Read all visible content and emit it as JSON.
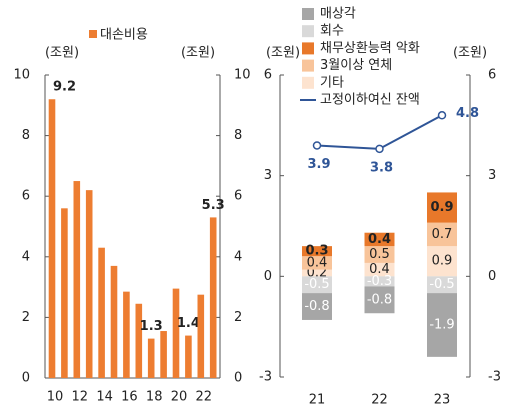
{
  "chart_data": [
    {
      "type": "bar",
      "legend": "대손비용",
      "color": "#ed7d31",
      "unit_left": "(조원)",
      "unit_right": "(조원)",
      "categories": [
        "10",
        null,
        "12",
        null,
        "14",
        null,
        "16",
        null,
        "18",
        null,
        "20",
        null,
        "22",
        null
      ],
      "values": [
        9.2,
        5.6,
        6.5,
        6.2,
        4.3,
        3.7,
        2.85,
        2.45,
        1.3,
        1.55,
        2.95,
        1.4,
        2.75,
        5.3
      ],
      "value_labels": [
        "9.2",
        null,
        null,
        null,
        null,
        null,
        null,
        null,
        "1.3",
        null,
        null,
        "1.4",
        null,
        "5.3"
      ],
      "ylim": [
        0,
        10
      ],
      "yticks": [
        0,
        2,
        4,
        6,
        8,
        10
      ]
    },
    {
      "type": "combo",
      "unit_left": "(조원)",
      "unit_right": "(조원)",
      "categories": [
        "21",
        "22",
        "23"
      ],
      "series": [
        {
          "name": "매상각",
          "color": "#a6a6a6",
          "values": [
            -0.8,
            -0.8,
            -1.9
          ]
        },
        {
          "name": "회수",
          "color": "#d9d9d9",
          "values": [
            -0.5,
            -0.3,
            -0.5
          ]
        },
        {
          "name": "채무상환능력 악화",
          "color": "#e8782a",
          "values": [
            0.3,
            0.4,
            0.9
          ]
        },
        {
          "name": "3월이상 연체",
          "color": "#f8c49a",
          "values": [
            0.4,
            0.5,
            0.7
          ]
        },
        {
          "name": "기타",
          "color": "#fde3cf",
          "values": [
            0.2,
            0.4,
            0.9
          ]
        },
        {
          "name": "고정이하여신 잔액",
          "color": "#2f5597",
          "kind": "line",
          "values": [
            3.9,
            3.8,
            4.8
          ]
        }
      ],
      "ylim": [
        -3,
        6
      ],
      "yticks": [
        -3,
        0,
        3,
        6
      ]
    }
  ]
}
